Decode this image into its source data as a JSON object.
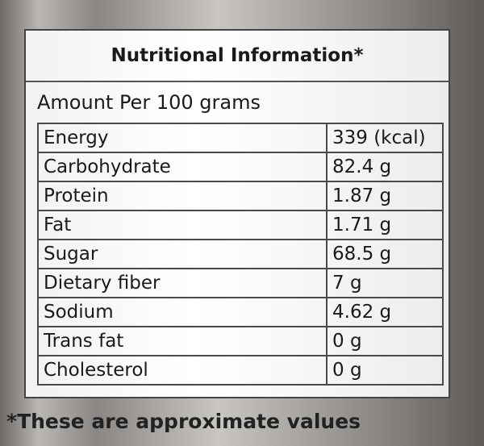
{
  "title": "Nutritional Information*",
  "subtitle": "Amount Per 100 grams",
  "rows": [
    [
      "Energy",
      "339 (kcal)"
    ],
    [
      "Carbohydrate",
      "82.4 g"
    ],
    [
      "Protein",
      "1.87 g"
    ],
    [
      "Fat",
      "1.71 g"
    ],
    [
      "Sugar",
      "68.5 g"
    ],
    [
      "Dietary fiber",
      "7 g"
    ],
    [
      "Sodium",
      "4.62 g"
    ],
    [
      "Trans fat",
      "0 g"
    ],
    [
      "Cholesterol",
      "0 g"
    ]
  ],
  "footnote": "*These are approximate values"
}
